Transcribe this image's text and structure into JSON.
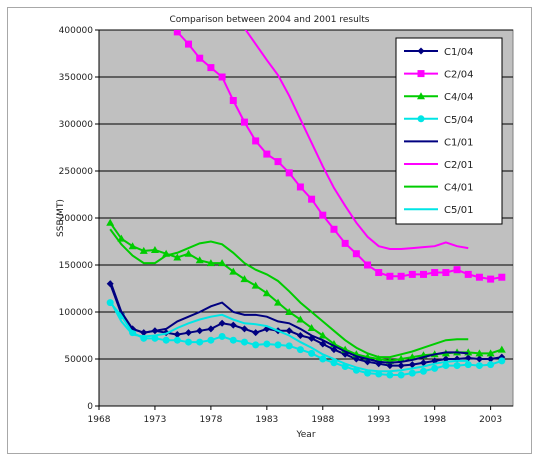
{
  "chart_data": {
    "type": "line",
    "title": "Comparison between 2004 and 2001 results",
    "xlabel": "Year",
    "ylabel": "SSB(MT)",
    "xlim": [
      1968,
      2005
    ],
    "ylim": [
      0,
      400000
    ],
    "xticks": [
      1968,
      1973,
      1978,
      1983,
      1988,
      1993,
      1998,
      2003
    ],
    "yticks": [
      0,
      50000,
      100000,
      150000,
      200000,
      250000,
      300000,
      350000,
      400000
    ],
    "grid": "horizontal",
    "legend": "top-right",
    "plot_background": "#c0c0c0",
    "series": [
      {
        "name": "C1/04",
        "color": "#000080",
        "marker": "diamond",
        "line": true,
        "x": [
          1969,
          1970,
          1971,
          1972,
          1973,
          1974,
          1975,
          1976,
          1977,
          1978,
          1979,
          1980,
          1981,
          1982,
          1983,
          1984,
          1985,
          1986,
          1987,
          1988,
          1989,
          1990,
          1991,
          1992,
          1993,
          1994,
          1995,
          1996,
          1997,
          1998,
          1999,
          2000,
          2001,
          2002,
          2003,
          2004
        ],
        "y": [
          130000,
          98000,
          82000,
          78000,
          80000,
          78000,
          76000,
          78000,
          80000,
          82000,
          88000,
          86000,
          82000,
          78000,
          82000,
          80000,
          80000,
          75000,
          72000,
          66000,
          60000,
          55000,
          50000,
          47000,
          45000,
          43000,
          43000,
          44000,
          46000,
          48000,
          50000,
          50000,
          51000,
          50000,
          50000,
          52000
        ]
      },
      {
        "name": "C2/04",
        "color": "#ff00ff",
        "marker": "square",
        "line": true,
        "x": [
          1975,
          1976,
          1977,
          1978,
          1979,
          1980,
          1981,
          1982,
          1983,
          1984,
          1985,
          1986,
          1987,
          1988,
          1989,
          1990,
          1991,
          1992,
          1993,
          1994,
          1995,
          1996,
          1997,
          1998,
          1999,
          2000,
          2001,
          2002,
          2003,
          2004
        ],
        "y": [
          398000,
          385000,
          370000,
          360000,
          350000,
          325000,
          302000,
          282000,
          268000,
          260000,
          248000,
          233000,
          220000,
          203000,
          188000,
          173000,
          162000,
          150000,
          142000,
          138000,
          138000,
          140000,
          140000,
          142000,
          142000,
          145000,
          140000,
          137000,
          135000,
          137000
        ]
      },
      {
        "name": "C4/04",
        "color": "#00cc00",
        "marker": "triangle",
        "line": true,
        "x": [
          1969,
          1970,
          1971,
          1972,
          1973,
          1974,
          1975,
          1976,
          1977,
          1978,
          1979,
          1980,
          1981,
          1982,
          1983,
          1984,
          1985,
          1986,
          1987,
          1988,
          1989,
          1990,
          1991,
          1992,
          1993,
          1994,
          1995,
          1996,
          1997,
          1998,
          1999,
          2000,
          2001,
          2002,
          2003,
          2004
        ],
        "y": [
          195000,
          178000,
          170000,
          165000,
          166000,
          162000,
          158000,
          162000,
          155000,
          152000,
          152000,
          143000,
          135000,
          128000,
          120000,
          110000,
          100000,
          92000,
          83000,
          75000,
          66000,
          60000,
          55000,
          52000,
          50000,
          48000,
          50000,
          52000,
          54000,
          55000,
          56000,
          57000,
          57000,
          56000,
          56000,
          60000
        ]
      },
      {
        "name": "C5/04",
        "color": "#00e5e5",
        "marker": "circle",
        "line": true,
        "x": [
          1969,
          1970,
          1971,
          1972,
          1973,
          1974,
          1975,
          1976,
          1977,
          1978,
          1979,
          1980,
          1981,
          1982,
          1983,
          1984,
          1985,
          1986,
          1987,
          1988,
          1989,
          1990,
          1991,
          1992,
          1993,
          1994,
          1995,
          1996,
          1997,
          1998,
          1999,
          2000,
          2001,
          2002,
          2003,
          2004
        ],
        "y": [
          110000,
          96000,
          78000,
          72000,
          72000,
          70000,
          70000,
          68000,
          68000,
          70000,
          74000,
          70000,
          68000,
          65000,
          66000,
          65000,
          64000,
          60000,
          56000,
          50000,
          46000,
          42000,
          38000,
          35000,
          34000,
          33000,
          33000,
          35000,
          37000,
          40000,
          43000,
          43000,
          44000,
          43000,
          44000,
          48000
        ]
      },
      {
        "name": "C1/01",
        "color": "#000080",
        "marker": "none",
        "line": true,
        "x": [
          1969,
          1970,
          1971,
          1972,
          1973,
          1974,
          1975,
          1976,
          1977,
          1978,
          1979,
          1980,
          1981,
          1982,
          1983,
          1984,
          1985,
          1986,
          1987,
          1988,
          1989,
          1990,
          1991,
          1992,
          1993,
          1994,
          1995,
          1996,
          1997,
          1998,
          1999,
          2000,
          2001
        ],
        "y": [
          133000,
          100000,
          82000,
          78000,
          80000,
          82000,
          90000,
          95000,
          100000,
          106000,
          110000,
          100000,
          97000,
          97000,
          95000,
          90000,
          88000,
          82000,
          75000,
          70000,
          64000,
          58000,
          53000,
          50000,
          47000,
          46000,
          47000,
          49000,
          52000,
          55000,
          57000,
          57000,
          56000
        ]
      },
      {
        "name": "C2/01",
        "color": "#ff00ff",
        "marker": "none",
        "line": true,
        "x": [
          1981,
          1982,
          1983,
          1984,
          1985,
          1986,
          1987,
          1988,
          1989,
          1990,
          1991,
          1992,
          1993,
          1994,
          1995,
          1996,
          1997,
          1998,
          1999,
          2000,
          2001
        ],
        "y": [
          402000,
          385000,
          368000,
          352000,
          330000,
          305000,
          280000,
          255000,
          232000,
          213000,
          195000,
          180000,
          170000,
          167000,
          167000,
          168000,
          169000,
          170000,
          174000,
          170000,
          168000
        ]
      },
      {
        "name": "C4/01",
        "color": "#00cc00",
        "marker": "none",
        "line": true,
        "x": [
          1969,
          1970,
          1971,
          1972,
          1973,
          1974,
          1975,
          1976,
          1977,
          1978,
          1979,
          1980,
          1981,
          1982,
          1983,
          1984,
          1985,
          1986,
          1987,
          1988,
          1989,
          1990,
          1991,
          1992,
          1993,
          1994,
          1995,
          1996,
          1997,
          1998,
          1999,
          2000,
          2001
        ],
        "y": [
          188000,
          172000,
          160000,
          152000,
          152000,
          160000,
          163000,
          168000,
          173000,
          175000,
          172000,
          163000,
          152000,
          145000,
          140000,
          133000,
          122000,
          110000,
          100000,
          90000,
          80000,
          70000,
          62000,
          56000,
          52000,
          52000,
          55000,
          58000,
          62000,
          66000,
          70000,
          71000,
          71000
        ]
      },
      {
        "name": "C5/01",
        "color": "#00e5e5",
        "marker": "none",
        "line": true,
        "x": [
          1969,
          1970,
          1971,
          1972,
          1973,
          1974,
          1975,
          1976,
          1977,
          1978,
          1979,
          1980,
          1981,
          1982,
          1983,
          1984,
          1985,
          1986,
          1987,
          1988,
          1989,
          1990,
          1991,
          1992,
          1993,
          1994,
          1995,
          1996,
          1997,
          1998,
          1999,
          2000,
          2001
        ],
        "y": [
          112000,
          90000,
          76000,
          74000,
          75000,
          77000,
          83000,
          88000,
          92000,
          95000,
          97000,
          92000,
          88000,
          87000,
          85000,
          80000,
          75000,
          68000,
          62000,
          55000,
          50000,
          45000,
          41000,
          38000,
          37000,
          37000,
          38000,
          40000,
          42000,
          45000,
          47000,
          48000,
          48000
        ]
      }
    ]
  }
}
